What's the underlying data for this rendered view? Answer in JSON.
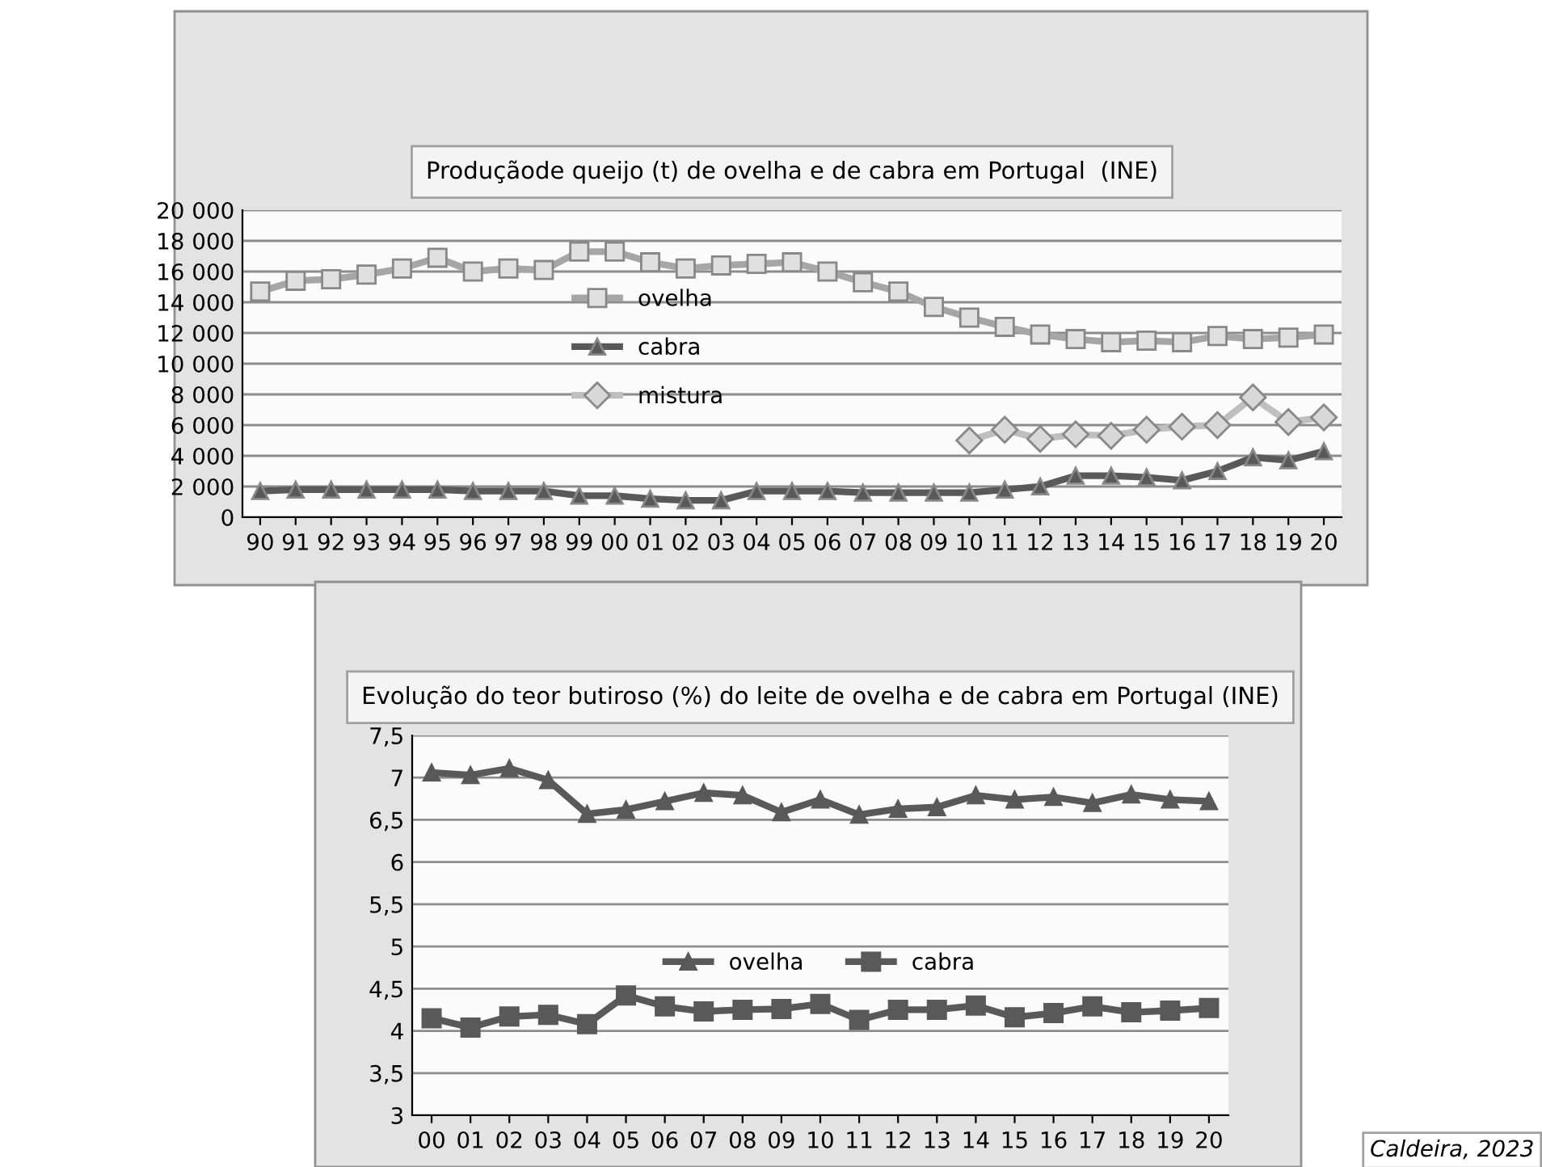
{
  "chart_data": [
    {
      "type": "line",
      "title": "Produçãode queijo (t) de ovelha e de cabra em Portugal  (INE)",
      "categories": [
        "90",
        "91",
        "92",
        "93",
        "94",
        "95",
        "96",
        "97",
        "98",
        "99",
        "00",
        "01",
        "02",
        "03",
        "04",
        "05",
        "06",
        "07",
        "08",
        "09",
        "10",
        "11",
        "12",
        "13",
        "14",
        "15",
        "16",
        "17",
        "18",
        "19",
        "20"
      ],
      "series": [
        {
          "name": "ovelha",
          "color": "#a6a6a6",
          "marker": "square",
          "values": [
            14700,
            15400,
            15500,
            15800,
            16200,
            16900,
            16000,
            16200,
            16100,
            17300,
            17300,
            16600,
            16200,
            16400,
            16500,
            16600,
            16000,
            15300,
            14700,
            13700,
            13000,
            12400,
            11900,
            11600,
            11400,
            11500,
            11400,
            11800,
            11600,
            11700,
            11900
          ]
        },
        {
          "name": "cabra",
          "color": "#595959",
          "marker": "triangle",
          "values": [
            1700,
            1800,
            1800,
            1800,
            1800,
            1800,
            1700,
            1700,
            1700,
            1400,
            1400,
            1200,
            1100,
            1100,
            1700,
            1700,
            1700,
            1600,
            1600,
            1600,
            1600,
            1800,
            2000,
            2700,
            2700,
            2600,
            2400,
            3000,
            3900,
            3700,
            4300
          ]
        },
        {
          "name": "mistura",
          "color": "#bfbfbf",
          "marker": "diamond",
          "values": [
            null,
            null,
            null,
            null,
            null,
            null,
            null,
            null,
            null,
            null,
            null,
            null,
            null,
            null,
            null,
            null,
            null,
            null,
            null,
            null,
            5000,
            5700,
            5100,
            5400,
            5300,
            5700,
            5900,
            6000,
            7800,
            6200,
            6500
          ]
        }
      ],
      "ylim": [
        0,
        20000
      ],
      "yticks": [
        {
          "value": 0,
          "label": "0"
        },
        {
          "value": 2000,
          "label": "2 000"
        },
        {
          "value": 4000,
          "label": "4 000"
        },
        {
          "value": 6000,
          "label": "6 000"
        },
        {
          "value": 8000,
          "label": "8 000"
        },
        {
          "value": 10000,
          "label": "10 000"
        },
        {
          "value": 12000,
          "label": "12 000"
        },
        {
          "value": 14000,
          "label": "14 000"
        },
        {
          "value": 16000,
          "label": "16 000"
        },
        {
          "value": 18000,
          "label": "18 000"
        },
        {
          "value": 20000,
          "label": "20 000"
        }
      ],
      "grid": "y",
      "legend": "center"
    },
    {
      "type": "line",
      "title": "Evolução do teor butiroso (%) do leite de ovelha e de cabra em Portugal (INE)",
      "categories": [
        "00",
        "01",
        "02",
        "03",
        "04",
        "05",
        "06",
        "07",
        "08",
        "09",
        "10",
        "11",
        "12",
        "13",
        "14",
        "15",
        "16",
        "17",
        "18",
        "19",
        "20"
      ],
      "series": [
        {
          "name": "ovelha",
          "color": "#595959",
          "marker": "triangle",
          "values": [
            7.06,
            7.03,
            7.11,
            6.97,
            6.57,
            6.62,
            6.72,
            6.82,
            6.79,
            6.59,
            6.74,
            6.56,
            6.63,
            6.65,
            6.79,
            6.74,
            6.77,
            6.7,
            6.8,
            6.74,
            6.72
          ]
        },
        {
          "name": "cabra",
          "color": "#595959",
          "marker": "square",
          "values": [
            4.15,
            4.04,
            4.17,
            4.19,
            4.08,
            4.42,
            4.29,
            4.23,
            4.25,
            4.26,
            4.32,
            4.13,
            4.25,
            4.25,
            4.3,
            4.16,
            4.21,
            4.29,
            4.22,
            4.24,
            4.27
          ]
        }
      ],
      "ylim": [
        3,
        7.5
      ],
      "yticks": [
        {
          "value": 3,
          "label": "3"
        },
        {
          "value": 3.5,
          "label": "3,5"
        },
        {
          "value": 4,
          "label": "4"
        },
        {
          "value": 4.5,
          "label": "4,5"
        },
        {
          "value": 5,
          "label": "5"
        },
        {
          "value": 5.5,
          "label": "5,5"
        },
        {
          "value": 6,
          "label": "6"
        },
        {
          "value": 6.5,
          "label": "6,5"
        },
        {
          "value": 7,
          "label": "7"
        },
        {
          "value": 7.5,
          "label": "7,5"
        }
      ],
      "grid": "y",
      "legend": "center",
      "annotations": [
        "Caldeira, 2023"
      ]
    }
  ]
}
